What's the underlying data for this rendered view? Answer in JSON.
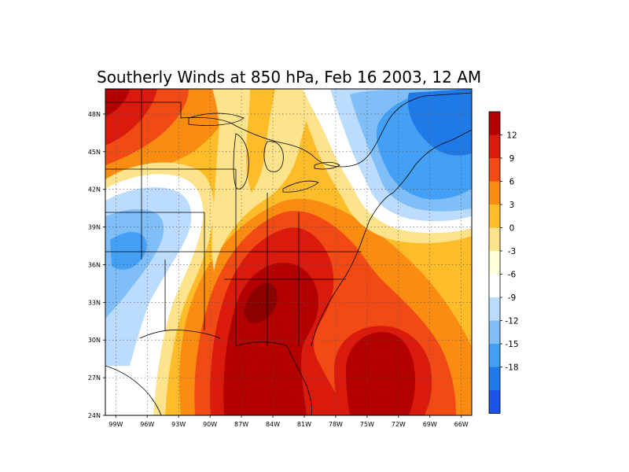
{
  "title": "Southerly Winds at 850 hPa, Feb 16 2003, 12 AM",
  "map": {
    "lon_range": [
      -100,
      -65
    ],
    "lat_range": [
      24,
      50
    ],
    "lat_ticks": [
      {
        "value": 48,
        "label": "48N"
      },
      {
        "value": 45,
        "label": "45N"
      },
      {
        "value": 42,
        "label": "42N"
      },
      {
        "value": 39,
        "label": "39N"
      },
      {
        "value": 36,
        "label": "36N"
      },
      {
        "value": 33,
        "label": "33N"
      },
      {
        "value": 30,
        "label": "30N"
      },
      {
        "value": 27,
        "label": "27N"
      },
      {
        "value": 24,
        "label": "24N"
      }
    ],
    "lon_ticks": [
      {
        "value": -99,
        "label": "99W"
      },
      {
        "value": -96,
        "label": "96W"
      },
      {
        "value": -93,
        "label": "93W"
      },
      {
        "value": -90,
        "label": "90W"
      },
      {
        "value": -87,
        "label": "87W"
      },
      {
        "value": -84,
        "label": "84W"
      },
      {
        "value": -81,
        "label": "81W"
      },
      {
        "value": -78,
        "label": "78W"
      },
      {
        "value": -75,
        "label": "75W"
      },
      {
        "value": -72,
        "label": "72W"
      },
      {
        "value": -69,
        "label": "69W"
      },
      {
        "value": -66,
        "label": "66W"
      }
    ],
    "gridlines": "dotted"
  },
  "colorbar": {
    "labels": [
      "12",
      "9",
      "6",
      "3",
      "0",
      "-3",
      "-6",
      "-9",
      "-12",
      "-15",
      "-18"
    ],
    "colors": [
      "#b30000",
      "#d91a0c",
      "#f24a14",
      "#fb8c12",
      "#fdbd2a",
      "#fde48c",
      "#ffffd9",
      "#ffffff",
      "#bcdcfd",
      "#80bef8",
      "#43a0f4",
      "#1f7ae8",
      "#1a55e8"
    ]
  },
  "palette": {
    "c12": "#b30000",
    "c9": "#d91a0c",
    "c6": "#f24a14",
    "c3": "#fb8c12",
    "c0": "#fdbd2a",
    "cm3": "#fde48c",
    "cm6": "#ffffff",
    "cm9": "#bcdcfd",
    "cm12": "#80bef8",
    "cm15": "#43a0f4"
  }
}
